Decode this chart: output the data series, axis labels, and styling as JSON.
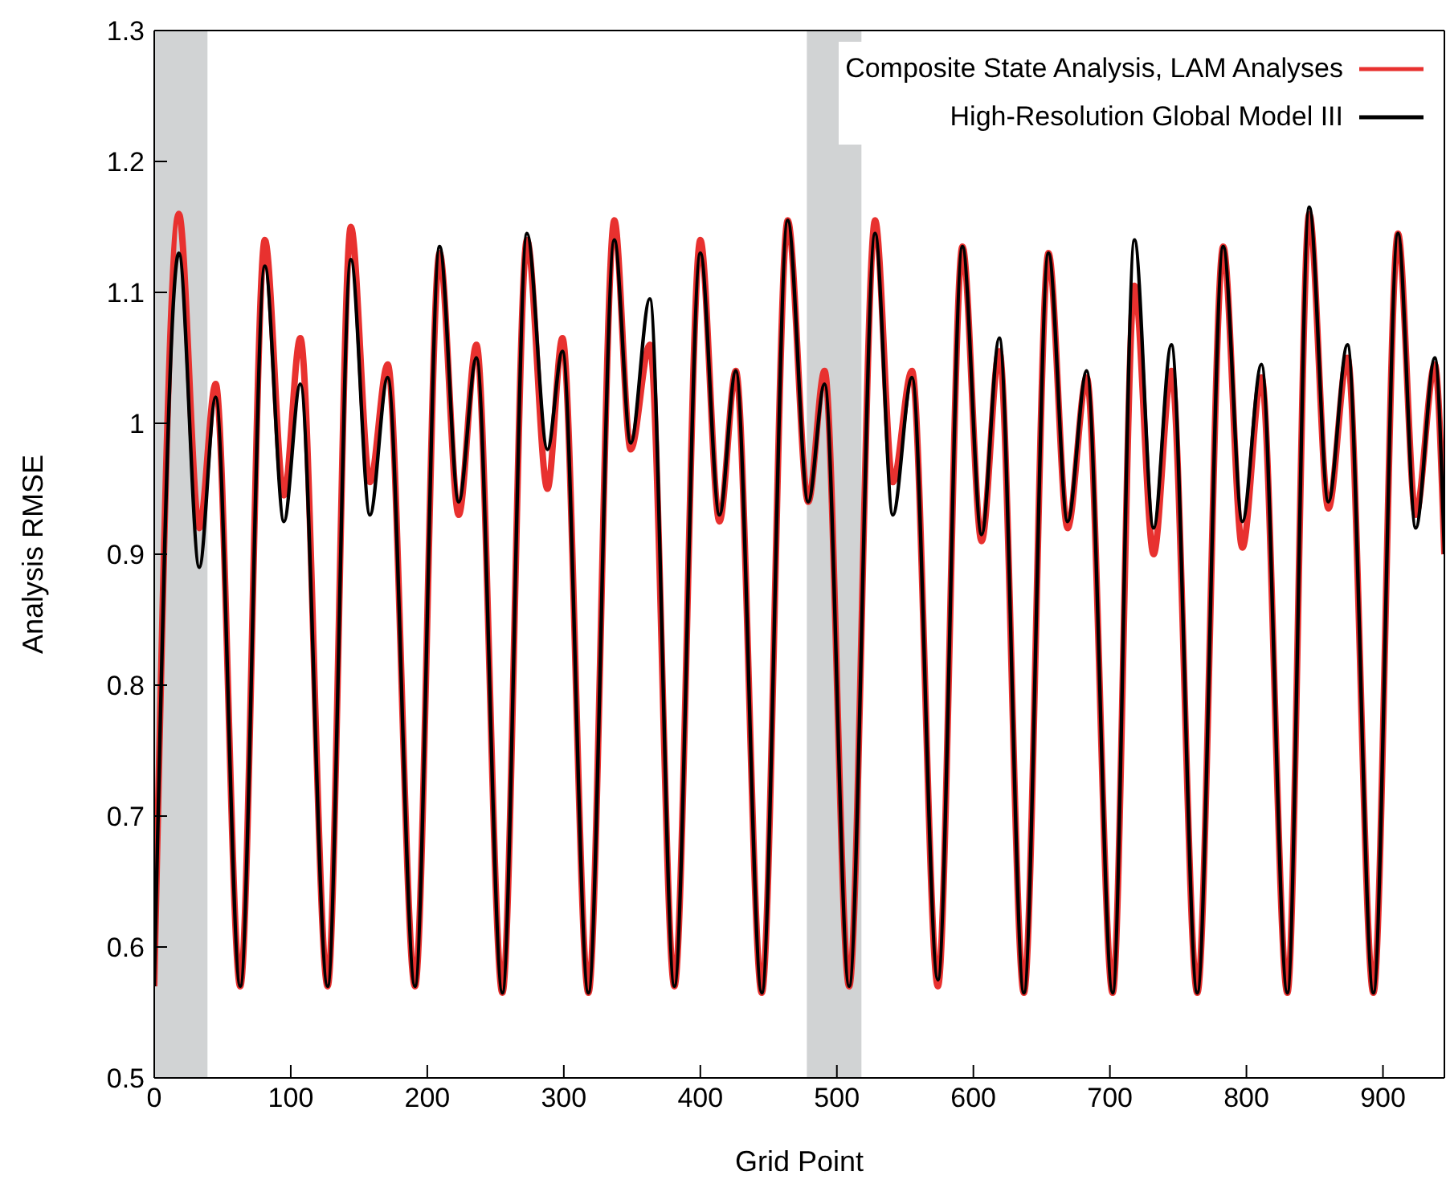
{
  "chart_data": {
    "type": "line",
    "xlabel": "Grid Point",
    "ylabel": "Analysis RMSE",
    "x": [
      0,
      18,
      33,
      45,
      63,
      81,
      95,
      107,
      127,
      144,
      158,
      171,
      191,
      209,
      223,
      236,
      255,
      273,
      288,
      299,
      318,
      337,
      349,
      363,
      381,
      400,
      414,
      426,
      445,
      464,
      479,
      491,
      509,
      528,
      541,
      555,
      574,
      592,
      606,
      619,
      637,
      655,
      669,
      683,
      702,
      718,
      732,
      745,
      764,
      783,
      797,
      811,
      830,
      846,
      860,
      874,
      893,
      911,
      924,
      938,
      945
    ],
    "series": [
      {
        "name": "Composite State Analysis, LAM Analyses",
        "color": "#e8312f",
        "values": [
          0.57,
          1.16,
          0.92,
          1.03,
          0.57,
          1.14,
          0.945,
          1.065,
          0.57,
          1.15,
          0.955,
          1.045,
          0.57,
          1.13,
          0.93,
          1.06,
          0.565,
          1.14,
          0.95,
          1.065,
          0.565,
          1.155,
          0.98,
          1.06,
          0.57,
          1.14,
          0.925,
          1.04,
          0.565,
          1.155,
          0.94,
          1.04,
          0.57,
          1.155,
          0.955,
          1.04,
          0.57,
          1.135,
          0.91,
          1.055,
          0.565,
          1.13,
          0.92,
          1.035,
          0.565,
          1.105,
          0.9,
          1.04,
          0.565,
          1.135,
          0.905,
          1.035,
          0.565,
          1.16,
          0.935,
          1.05,
          0.565,
          1.145,
          0.93,
          1.045,
          0.9
        ]
      },
      {
        "name": "High-Resolution Global Model III",
        "color": "#000000",
        "values": [
          0.57,
          1.13,
          0.89,
          1.02,
          0.57,
          1.12,
          0.925,
          1.03,
          0.57,
          1.125,
          0.93,
          1.035,
          0.57,
          1.135,
          0.94,
          1.05,
          0.565,
          1.145,
          0.98,
          1.055,
          0.565,
          1.14,
          0.985,
          1.095,
          0.57,
          1.13,
          0.93,
          1.04,
          0.565,
          1.155,
          0.94,
          1.03,
          0.57,
          1.145,
          0.93,
          1.035,
          0.575,
          1.135,
          0.915,
          1.065,
          0.565,
          1.13,
          0.925,
          1.04,
          0.565,
          1.14,
          0.92,
          1.06,
          0.565,
          1.135,
          0.925,
          1.045,
          0.565,
          1.165,
          0.94,
          1.06,
          0.565,
          1.145,
          0.92,
          1.05,
          0.9
        ]
      }
    ],
    "xlim": [
      0,
      945
    ],
    "xticks": [
      0,
      100,
      200,
      300,
      400,
      500,
      600,
      700,
      800,
      900
    ],
    "ylim": [
      0.5,
      1.3
    ],
    "yticks": [
      0.5,
      0.6,
      0.7,
      0.8,
      0.9,
      1,
      1.1,
      1.2,
      1.3
    ],
    "bands": [
      {
        "axis": "x",
        "from": 0,
        "to": 39,
        "color": "#d1d3d4"
      },
      {
        "axis": "x",
        "from": 478,
        "to": 518,
        "color": "#d1d3d4"
      }
    ],
    "legend": "top right",
    "marker": "none",
    "line_style": "solid",
    "grid": false
  }
}
